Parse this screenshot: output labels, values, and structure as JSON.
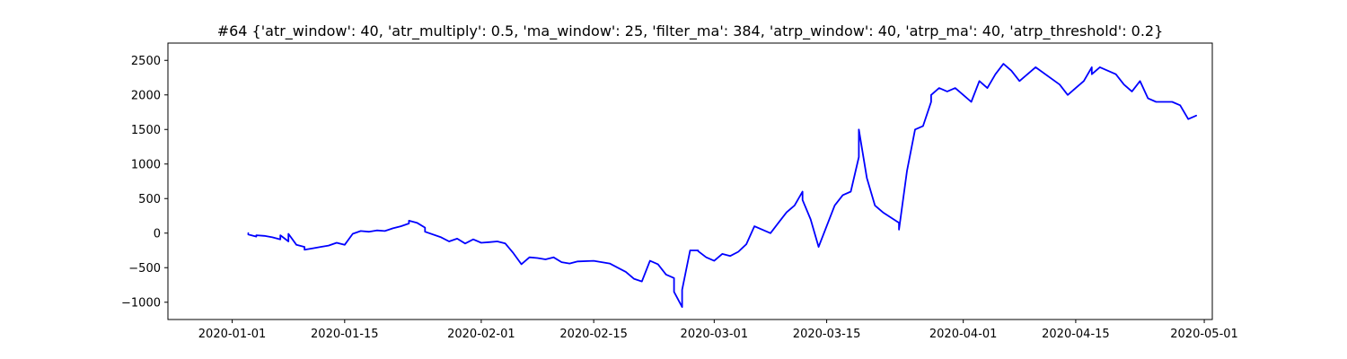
{
  "chart_data": {
    "type": "line",
    "title": "#64 {'atr_window': 40, 'atr_multiply': 0.5, 'ma_window': 25, 'filter_ma': 384, 'atrp_window': 40, 'atrp_ma': 40, 'atrp_threshold': 0.2}",
    "xlabel": "",
    "ylabel": "",
    "xlim": [
      "2019-12-24",
      "2020-05-02"
    ],
    "ylim": [
      -1250,
      2750
    ],
    "x_ticks": [
      "2020-01-01",
      "2020-01-15",
      "2020-02-01",
      "2020-02-15",
      "2020-03-01",
      "2020-03-15",
      "2020-04-01",
      "2020-04-15",
      "2020-05-01"
    ],
    "y_ticks": [
      -1000,
      -500,
      0,
      500,
      1000,
      1500,
      2000,
      2500
    ],
    "grid": false,
    "legend": "none",
    "colors": {
      "line": "#0000ff",
      "axes": "#000000",
      "background": "#ffffff"
    },
    "series": [
      {
        "x": [
          "2020-01-03",
          "2020-01-03",
          "2020-01-04",
          "2020-01-04",
          "2020-01-05",
          "2020-01-06",
          "2020-01-07",
          "2020-01-07",
          "2020-01-08",
          "2020-01-08",
          "2020-01-09",
          "2020-01-10",
          "2020-01-10",
          "2020-01-11",
          "2020-01-12",
          "2020-01-13",
          "2020-01-14",
          "2020-01-15",
          "2020-01-16",
          "2020-01-17",
          "2020-01-18",
          "2020-01-19",
          "2020-01-20",
          "2020-01-21",
          "2020-01-22",
          "2020-01-23",
          "2020-01-23",
          "2020-01-24",
          "2020-01-25",
          "2020-01-25",
          "2020-01-27",
          "2020-01-28",
          "2020-01-29",
          "2020-01-30",
          "2020-01-31",
          "2020-02-01",
          "2020-02-02",
          "2020-02-03",
          "2020-02-04",
          "2020-02-05",
          "2020-02-06",
          "2020-02-07",
          "2020-02-08",
          "2020-02-09",
          "2020-02-10",
          "2020-02-11",
          "2020-02-12",
          "2020-02-13",
          "2020-02-15",
          "2020-02-17",
          "2020-02-18",
          "2020-02-19",
          "2020-02-20",
          "2020-02-21",
          "2020-02-22",
          "2020-02-23",
          "2020-02-24",
          "2020-02-25",
          "2020-02-25",
          "2020-02-26",
          "2020-02-26",
          "2020-02-27",
          "2020-02-28",
          "2020-02-28",
          "2020-02-29",
          "2020-03-01",
          "2020-03-02",
          "2020-03-03",
          "2020-03-04",
          "2020-03-05",
          "2020-03-06",
          "2020-03-08",
          "2020-03-09",
          "2020-03-10",
          "2020-03-11",
          "2020-03-12",
          "2020-03-12",
          "2020-03-13",
          "2020-03-14",
          "2020-03-16",
          "2020-03-17",
          "2020-03-18",
          "2020-03-19",
          "2020-03-19",
          "2020-03-20",
          "2020-03-21",
          "2020-03-22",
          "2020-03-24",
          "2020-03-24",
          "2020-03-25",
          "2020-03-26",
          "2020-03-27",
          "2020-03-28",
          "2020-03-28",
          "2020-03-29",
          "2020-03-30",
          "2020-03-31",
          "2020-04-01",
          "2020-04-02",
          "2020-04-03",
          "2020-04-04",
          "2020-04-05",
          "2020-04-06",
          "2020-04-07",
          "2020-04-08",
          "2020-04-09",
          "2020-04-10",
          "2020-04-13",
          "2020-04-14",
          "2020-04-15",
          "2020-04-16",
          "2020-04-17",
          "2020-04-17",
          "2020-04-18",
          "2020-04-20",
          "2020-04-21",
          "2020-04-22",
          "2020-04-23",
          "2020-04-24",
          "2020-04-25",
          "2020-04-26",
          "2020-04-27",
          "2020-04-28",
          "2020-04-29",
          "2020-04-30"
        ],
        "y": [
          0,
          -20,
          -50,
          -30,
          -40,
          -60,
          -90,
          -30,
          -120,
          -10,
          -170,
          -200,
          -240,
          -220,
          -200,
          -180,
          -140,
          -170,
          -10,
          30,
          20,
          40,
          30,
          70,
          100,
          140,
          180,
          150,
          80,
          20,
          -60,
          -120,
          -80,
          -150,
          -90,
          -140,
          -130,
          -120,
          -150,
          -290,
          -450,
          -350,
          -360,
          -380,
          -350,
          -420,
          -440,
          -410,
          -400,
          -440,
          -500,
          -560,
          -660,
          -700,
          -400,
          -450,
          -600,
          -650,
          -850,
          -1070,
          -820,
          -250,
          -250,
          -260,
          -350,
          -400,
          -300,
          -330,
          -270,
          -160,
          100,
          0,
          150,
          300,
          400,
          600,
          480,
          200,
          -200,
          400,
          550,
          600,
          1100,
          1500,
          800,
          400,
          300,
          150,
          50,
          900,
          1500,
          1550,
          1900,
          2000,
          2100,
          2050,
          2100,
          2000,
          1900,
          2200,
          2100,
          2300,
          2450,
          2350,
          2200,
          2300,
          2400,
          2150,
          2000,
          2100,
          2200,
          2400,
          2300,
          2400,
          2300,
          2150,
          2050,
          2200,
          1950,
          1900,
          1900,
          1900,
          1850,
          1650,
          1700
        ]
      }
    ]
  }
}
